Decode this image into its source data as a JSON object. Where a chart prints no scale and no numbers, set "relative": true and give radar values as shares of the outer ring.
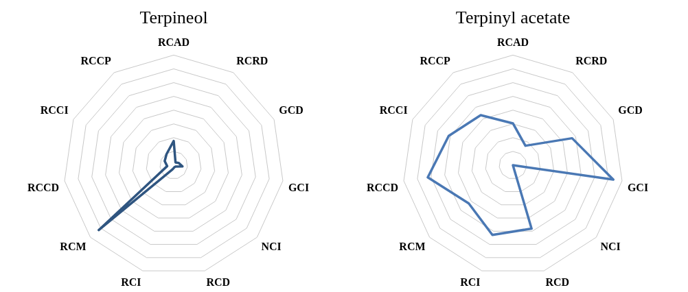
{
  "chart_data": [
    {
      "type": "radar",
      "title": "Terpineol",
      "relative": true,
      "categories": [
        "RCAD",
        "RCRD",
        "GCD",
        "GCI",
        "NCI",
        "RCD",
        "RCI",
        "RCM",
        "RCCD",
        "RCCI",
        "RCCP"
      ],
      "series": [
        {
          "color": "#2f5580",
          "values": [
            0.22,
            0.03,
            0.05,
            0.08,
            0.02,
            0.02,
            0.04,
            0.9,
            0.06,
            0.09,
            0.12
          ]
        }
      ],
      "legend": false,
      "grid": true,
      "marker": "none"
    },
    {
      "type": "radar",
      "title": "Terpinyl acetate",
      "relative": true,
      "categories": [
        "RCAD",
        "RCRD",
        "GCD",
        "GCI",
        "NCI",
        "RCD",
        "RCI",
        "RCM",
        "RCCD",
        "RCCI",
        "RCCP"
      ],
      "series": [
        {
          "color": "#4a78b4",
          "values": [
            0.38,
            0.21,
            0.59,
            0.92,
            0,
            0.6,
            0.66,
            0.53,
            0.78,
            0.64,
            0.54
          ]
        }
      ],
      "legend": false,
      "grid": true,
      "marker": "none"
    }
  ]
}
